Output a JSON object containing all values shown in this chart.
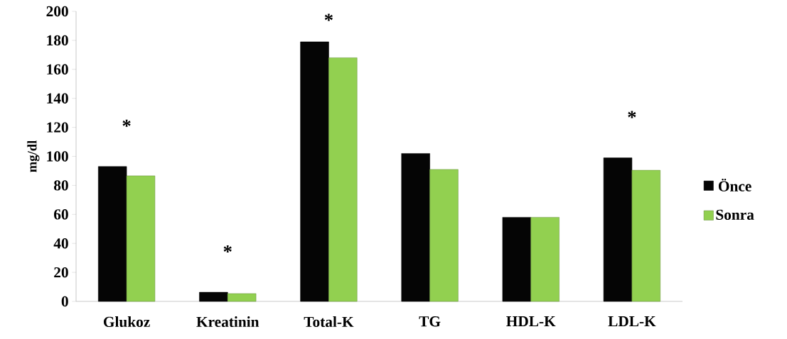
{
  "chart_data": {
    "type": "bar",
    "ylabel": "mg/dl",
    "categories": [
      "Glukoz",
      "Kreatinin",
      "Total-K",
      "TG",
      "HDL-K",
      "LDL-K"
    ],
    "series": [
      {
        "name": "Önce",
        "color": "#050505",
        "values": [
          93,
          6.3,
          179,
          102,
          58,
          99
        ]
      },
      {
        "name": "Sonra",
        "color": "#92d050",
        "values": [
          86.6,
          5.4,
          168,
          91,
          58,
          90.4
        ]
      }
    ],
    "ylim": [
      0,
      200
    ],
    "yticks": [
      0,
      20,
      40,
      60,
      80,
      100,
      120,
      140,
      160,
      180,
      200
    ],
    "legend": "right",
    "annotations": [
      "*",
      "*",
      "*",
      "*"
    ]
  }
}
